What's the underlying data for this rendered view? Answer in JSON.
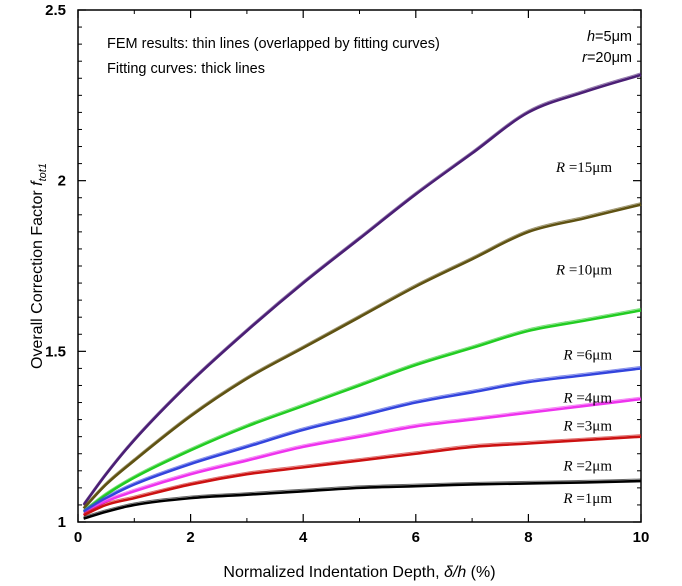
{
  "chart_data": {
    "type": "line",
    "xlabel": "Normalized Indentation Depth, δ/h (%)",
    "xlabel_parts": {
      "main": "Normalized Indentation Depth, ",
      "ital": "δ/h",
      "tail": " (%)"
    },
    "ylabel": "Overall Correction Factor f_tot1",
    "ylabel_parts": {
      "main": "Overall Correction Factor ",
      "ital": "f",
      "sub": "tot1"
    },
    "xlim": [
      0,
      10
    ],
    "ylim": [
      1,
      2.5
    ],
    "x_ticks": [
      "0",
      "2",
      "4",
      "6",
      "8",
      "10"
    ],
    "y_ticks": [
      "1",
      "1.5",
      "2",
      "2.5"
    ],
    "grid": false,
    "annotations": {
      "note_line1": "FEM results: thin lines (overlapped by fitting curves)",
      "note_line2": "Fitting curves: thick lines",
      "h_label": {
        "ital": "h",
        "text": "=5μm"
      },
      "r_label": {
        "ital": "r",
        "text": "=20μm"
      }
    },
    "x": [
      0.1,
      0.5,
      1,
      2,
      3,
      4,
      5,
      6,
      7,
      8,
      9,
      10
    ],
    "series": [
      {
        "name": "R =15μm",
        "label_ital": "R",
        "label_text": " =15μm",
        "color": "#4b1f75",
        "values": [
          1.05,
          1.14,
          1.24,
          1.41,
          1.56,
          1.7,
          1.83,
          1.96,
          2.08,
          2.2,
          2.26,
          2.31
        ]
      },
      {
        "name": "R =10μm",
        "label_ital": "R",
        "label_text": " =10μm",
        "color": "#5f5212",
        "values": [
          1.04,
          1.11,
          1.18,
          1.31,
          1.42,
          1.51,
          1.6,
          1.69,
          1.77,
          1.85,
          1.89,
          1.93
        ]
      },
      {
        "name": "R =6μm",
        "label_ital": "R",
        "label_text": " =6μm",
        "color": "#22cc22",
        "values": [
          1.03,
          1.08,
          1.13,
          1.21,
          1.28,
          1.34,
          1.4,
          1.46,
          1.51,
          1.56,
          1.59,
          1.62
        ]
      },
      {
        "name": "R =4μm",
        "label_ital": "R",
        "label_text": " =4μm",
        "color": "#3344dd",
        "values": [
          1.03,
          1.07,
          1.11,
          1.17,
          1.22,
          1.27,
          1.31,
          1.35,
          1.38,
          1.41,
          1.43,
          1.45
        ]
      },
      {
        "name": "R =3μm",
        "label_ital": "R",
        "label_text": " =3μm",
        "color": "#ee33ee",
        "values": [
          1.02,
          1.06,
          1.09,
          1.14,
          1.18,
          1.22,
          1.25,
          1.28,
          1.3,
          1.32,
          1.34,
          1.36
        ]
      },
      {
        "name": "R =2μm",
        "label_ital": "R",
        "label_text": " =2μm",
        "color": "#cc1111",
        "values": [
          1.02,
          1.05,
          1.07,
          1.11,
          1.14,
          1.16,
          1.18,
          1.2,
          1.22,
          1.23,
          1.24,
          1.25
        ]
      },
      {
        "name": "R =1μm",
        "label_ital": "R",
        "label_text": " =1μm",
        "color": "#000000",
        "values": [
          1.01,
          1.03,
          1.05,
          1.07,
          1.08,
          1.09,
          1.1,
          1.105,
          1.11,
          1.113,
          1.116,
          1.12
        ]
      }
    ],
    "label_y": [
      2.04,
      1.74,
      1.49,
      1.365,
      1.283,
      1.165,
      1.07
    ]
  }
}
